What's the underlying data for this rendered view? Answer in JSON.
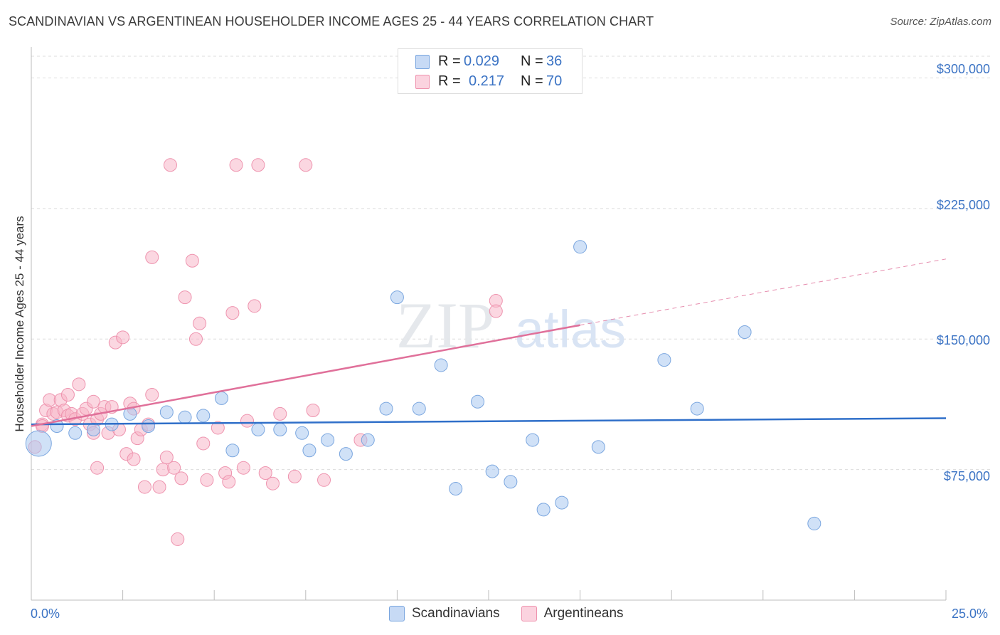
{
  "title": "SCANDINAVIAN VS ARGENTINEAN HOUSEHOLDER INCOME AGES 25 - 44 YEARS CORRELATION CHART",
  "source": "Source: ZipAtlas.com",
  "watermark": {
    "zip": "ZIP",
    "atlas": "atlas"
  },
  "legend_top": {
    "rows": [
      {
        "r_label": "R = ",
        "r_value": "0.029",
        "n_label": "N = ",
        "n_value": "36",
        "color": "#aac8f0"
      },
      {
        "r_label": "R = ",
        "r_value": "0.217",
        "n_label": "N = ",
        "n_value": "70",
        "color": "#f7b6c9"
      }
    ]
  },
  "legend_bottom": [
    {
      "label": "Scandinavians",
      "color": "#aac8f0"
    },
    {
      "label": "Argentineans",
      "color": "#f7b6c9"
    }
  ],
  "chart_data": {
    "type": "scatter",
    "title": "SCANDINAVIAN VS ARGENTINEAN HOUSEHOLDER INCOME AGES 25 - 44 YEARS CORRELATION CHART",
    "xlabel": "",
    "ylabel": "Householder Income Ages 25 - 44 years",
    "xlim": [
      0,
      25
    ],
    "ylim": [
      0,
      312500
    ],
    "x_tick_labels": [
      "0.0%",
      "25.0%"
    ],
    "y_ticks": [
      75000,
      150000,
      225000,
      300000
    ],
    "y_tick_labels": [
      "$75,000",
      "$150,000",
      "$225,000",
      "$300,000"
    ],
    "grid": true,
    "legend": "top-center",
    "series": [
      {
        "name": "Scandinavians",
        "color": "#aac8f0",
        "stroke": "#7aa6df",
        "trend": {
          "x": [
            0,
            25
          ],
          "y": [
            101000,
            104500
          ],
          "color": "#2f6fc9"
        },
        "points": [
          [
            0.2,
            90000,
            "big"
          ],
          [
            0.7,
            100000
          ],
          [
            1.2,
            96000
          ],
          [
            1.7,
            98000
          ],
          [
            2.2,
            101000
          ],
          [
            2.7,
            107000
          ],
          [
            3.2,
            100000
          ],
          [
            3.7,
            108000
          ],
          [
            4.2,
            105000
          ],
          [
            4.7,
            106000
          ],
          [
            5.2,
            116000
          ],
          [
            5.5,
            86000
          ],
          [
            6.2,
            98000
          ],
          [
            6.8,
            98000
          ],
          [
            7.4,
            96000
          ],
          [
            7.6,
            86000
          ],
          [
            8.1,
            92000
          ],
          [
            8.6,
            84000
          ],
          [
            9.2,
            92000
          ],
          [
            9.7,
            110000
          ],
          [
            10.0,
            174000
          ],
          [
            10.6,
            110000
          ],
          [
            11.2,
            135000
          ],
          [
            11.6,
            64000
          ],
          [
            12.2,
            114000
          ],
          [
            12.6,
            74000
          ],
          [
            13.1,
            68000
          ],
          [
            13.7,
            92000
          ],
          [
            14.0,
            52000
          ],
          [
            14.5,
            56000
          ],
          [
            15.0,
            203000
          ],
          [
            15.5,
            88000
          ],
          [
            17.3,
            138000
          ],
          [
            18.2,
            110000
          ],
          [
            19.5,
            154000
          ],
          [
            21.4,
            44000
          ]
        ]
      },
      {
        "name": "Argentineans",
        "color": "#f7b6c9",
        "stroke": "#ee93ae",
        "trend": {
          "x": [
            0,
            15
          ],
          "y": [
            100000,
            158000
          ],
          "dashed_to": {
            "x": 25,
            "y": 196000
          },
          "color": "#e0709a"
        },
        "points": [
          [
            0.1,
            88000
          ],
          [
            0.3,
            101000
          ],
          [
            0.4,
            109000
          ],
          [
            0.5,
            115000
          ],
          [
            0.6,
            107000
          ],
          [
            0.7,
            108000
          ],
          [
            0.8,
            115000
          ],
          [
            0.9,
            109000
          ],
          [
            1.0,
            106000
          ],
          [
            1.0,
            118000
          ],
          [
            1.1,
            107000
          ],
          [
            1.2,
            104000
          ],
          [
            1.3,
            124000
          ],
          [
            1.4,
            107000
          ],
          [
            1.5,
            110000
          ],
          [
            1.6,
            101000
          ],
          [
            1.7,
            114000
          ],
          [
            1.7,
            96000
          ],
          [
            1.8,
            104000
          ],
          [
            1.8,
            76000
          ],
          [
            1.9,
            107000
          ],
          [
            2.0,
            111000
          ],
          [
            2.1,
            96000
          ],
          [
            2.2,
            111000
          ],
          [
            2.3,
            148000
          ],
          [
            2.4,
            98000
          ],
          [
            2.5,
            151000
          ],
          [
            2.6,
            84000
          ],
          [
            2.7,
            113000
          ],
          [
            2.8,
            81000
          ],
          [
            2.8,
            110000
          ],
          [
            2.9,
            93000
          ],
          [
            3.0,
            98000
          ],
          [
            3.1,
            65000
          ],
          [
            3.2,
            101000
          ],
          [
            3.3,
            197000
          ],
          [
            3.3,
            118000
          ],
          [
            3.5,
            65000
          ],
          [
            3.6,
            75000
          ],
          [
            3.7,
            82000
          ],
          [
            3.8,
            250000
          ],
          [
            3.9,
            76000
          ],
          [
            4.0,
            35000
          ],
          [
            4.1,
            70000
          ],
          [
            4.2,
            174000
          ],
          [
            4.4,
            195000
          ],
          [
            4.5,
            150000
          ],
          [
            4.6,
            159000
          ],
          [
            4.7,
            90000
          ],
          [
            4.8,
            69000
          ],
          [
            5.1,
            99000
          ],
          [
            5.3,
            73000
          ],
          [
            5.4,
            68000
          ],
          [
            5.5,
            165000
          ],
          [
            5.6,
            250000
          ],
          [
            5.8,
            76000
          ],
          [
            5.9,
            103000
          ],
          [
            6.1,
            169000
          ],
          [
            6.2,
            250000
          ],
          [
            6.4,
            73000
          ],
          [
            6.6,
            67000
          ],
          [
            6.8,
            107000
          ],
          [
            7.2,
            71000
          ],
          [
            7.5,
            250000
          ],
          [
            7.7,
            109000
          ],
          [
            8.0,
            69000
          ],
          [
            9.0,
            92000
          ],
          [
            12.7,
            172000
          ],
          [
            12.7,
            166000
          ],
          [
            0.3,
            100000
          ]
        ]
      }
    ]
  }
}
